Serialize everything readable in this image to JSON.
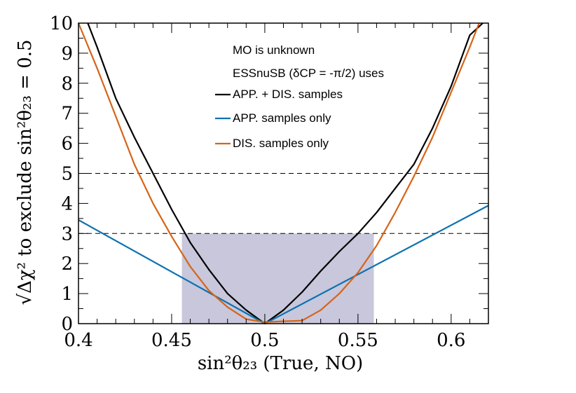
{
  "chart_data": {
    "type": "line",
    "xlabel": "sin²θ₂₃ (True, NO)",
    "ylabel": "√Δχ² to exclude sin²θ₂₃ = 0.5",
    "xlim": [
      0.4,
      0.62
    ],
    "ylim": [
      0,
      10
    ],
    "x_ticks": [
      "0.4",
      "0.45",
      "0.5",
      "0.55",
      "0.6"
    ],
    "x_tick_values": [
      0.4,
      0.45,
      0.5,
      0.55,
      0.6
    ],
    "y_ticks": [
      "0",
      "1",
      "2",
      "3",
      "4",
      "5",
      "6",
      "7",
      "8",
      "9",
      "10"
    ],
    "y_tick_values": [
      0,
      1,
      2,
      3,
      4,
      5,
      6,
      7,
      8,
      9,
      10
    ],
    "reference_lines": [
      3,
      5
    ],
    "shaded_region": {
      "x_range": [
        0.4555,
        0.5585
      ],
      "y_range": [
        0,
        3
      ],
      "color": "#c8c7dc"
    },
    "annotations": [
      "MO is unknown",
      "ESSnuSB (δCP = -π/2) uses"
    ],
    "legend": [
      {
        "label": "APP. + DIS. samples",
        "color": "#000000"
      },
      {
        "label": "APP. samples only",
        "color": "#0d72b0"
      },
      {
        "label": "DIS. samples only",
        "color": "#d66418"
      }
    ],
    "series": [
      {
        "name": "APP. + DIS. samples",
        "color": "#000000",
        "x": [
          0.405,
          0.41,
          0.42,
          0.43,
          0.44,
          0.45,
          0.46,
          0.47,
          0.48,
          0.49,
          0.5,
          0.51,
          0.52,
          0.53,
          0.54,
          0.55,
          0.56,
          0.57,
          0.58,
          0.59,
          0.6,
          0.61,
          0.617
        ],
        "y": [
          10.0,
          9.2,
          7.5,
          6.2,
          5.0,
          3.8,
          2.7,
          1.8,
          1.0,
          0.45,
          0.0,
          0.45,
          1.05,
          1.75,
          2.4,
          3.0,
          3.7,
          4.5,
          5.3,
          6.5,
          7.9,
          9.6,
          10.0
        ]
      },
      {
        "name": "APP. samples only",
        "color": "#0d72b0",
        "x": [
          0.4,
          0.5,
          0.62
        ],
        "y": [
          3.45,
          0.0,
          3.93
        ]
      },
      {
        "name": "DIS. samples only",
        "color": "#d66418",
        "x": [
          0.4,
          0.41,
          0.42,
          0.43,
          0.44,
          0.45,
          0.46,
          0.47,
          0.48,
          0.49,
          0.5,
          0.51,
          0.52,
          0.53,
          0.54,
          0.55,
          0.56,
          0.57,
          0.58,
          0.59,
          0.6,
          0.61,
          0.615
        ],
        "y": [
          10.0,
          8.5,
          6.9,
          5.3,
          4.0,
          2.9,
          1.9,
          1.1,
          0.55,
          0.15,
          0.05,
          0.08,
          0.1,
          0.45,
          1.0,
          1.7,
          2.6,
          3.7,
          4.9,
          6.2,
          7.7,
          9.2,
          10.0
        ]
      }
    ]
  }
}
